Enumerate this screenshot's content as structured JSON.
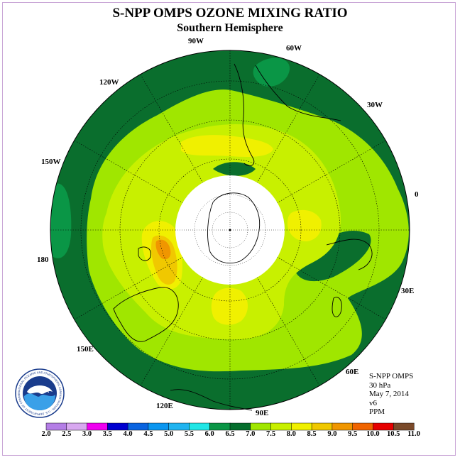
{
  "title": "S-NPP OMPS OZONE MIXING RATIO",
  "subtitle": "Southern Hemisphere",
  "longitude_labels": {
    "w90": "90W",
    "w60": "60W",
    "w120": "120W",
    "w30": "30W",
    "w150": "150W",
    "e0": "0",
    "e180": "180",
    "e30": "30E",
    "e150": "150E",
    "e60": "60E",
    "e120": "120E",
    "e90": "90E"
  },
  "info": {
    "product": "S-NPP OMPS",
    "level": "30 hPa",
    "date": "May 7, 2014",
    "version": "v6",
    "units": "PPM"
  },
  "logo": {
    "text": "NOAA",
    "ring_text": "NATIONAL OCEANIC AND ATMOSPHERIC ADMINISTRATION · U.S. DEPARTMENT OF COMMERCE"
  },
  "colorbar": {
    "ticks": [
      "2.0",
      "2.5",
      "3.0",
      "3.5",
      "4.0",
      "4.5",
      "5.0",
      "5.5",
      "6.0",
      "6.5",
      "7.0",
      "7.5",
      "8.0",
      "8.5",
      "9.0",
      "9.5",
      "10.0",
      "10.5",
      "11.0"
    ],
    "colors": [
      "#b47ee6",
      "#d8a8f0",
      "#f000f0",
      "#0000d0",
      "#0a64e0",
      "#0a96f0",
      "#20b4f0",
      "#20e6e6",
      "#0a9646",
      "#056e2d",
      "#a0e600",
      "#c8f000",
      "#f0f000",
      "#f0c800",
      "#f09600",
      "#f06400",
      "#e60000",
      "#7a4a2a"
    ]
  },
  "map": {
    "colors": {
      "dark_green": "#0a6e2d",
      "mid_green": "#0a9646",
      "lime1": "#a0e600",
      "lime2": "#c8f000",
      "yellow": "#f0f000",
      "gold": "#f0c800",
      "orange": "#f09600",
      "polar_night": "#ffffff"
    }
  }
}
